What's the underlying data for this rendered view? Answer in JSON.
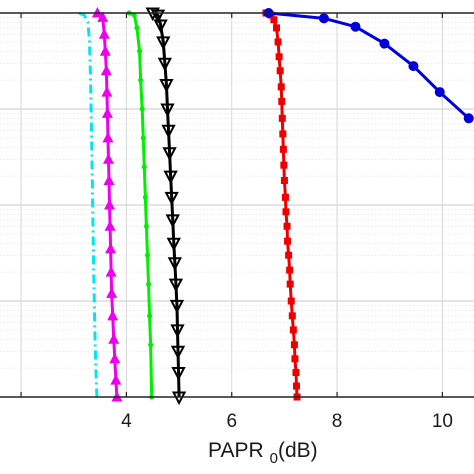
{
  "chart_data": {
    "type": "line",
    "title": "",
    "xlabel": "PAPR",
    "xlabel_subscript": "0",
    "xlabel_unit": "(dB)",
    "ylabel": "",
    "xlim": [
      1.6,
      10.6
    ],
    "ylim_log": [
      -4,
      0
    ],
    "y_scale": "log",
    "x_ticks": [
      "4",
      "6",
      "8",
      "10"
    ],
    "grid": true,
    "series": [
      {
        "color": "#00e5ee",
        "style": "dashdot",
        "marker": "none",
        "points": [
          [
            3.1,
            1.0
          ],
          [
            3.2,
            0.95
          ],
          [
            3.27,
            0.8
          ],
          [
            3.3,
            0.5
          ],
          [
            3.32,
            0.2
          ],
          [
            3.34,
            0.05
          ],
          [
            3.36,
            0.01
          ],
          [
            3.38,
            0.002
          ],
          [
            3.4,
            0.0005
          ],
          [
            3.42,
            0.0002
          ],
          [
            3.44,
            0.0001
          ]
        ]
      },
      {
        "color": "#ee00ee",
        "style": "solid",
        "marker": "triangle-up",
        "points": [
          [
            3.45,
            1.0
          ],
          [
            3.55,
            0.9
          ],
          [
            3.58,
            0.6
          ],
          [
            3.6,
            0.4
          ],
          [
            3.62,
            0.25
          ],
          [
            3.63,
            0.15
          ],
          [
            3.64,
            0.09
          ],
          [
            3.65,
            0.05
          ],
          [
            3.66,
            0.03
          ],
          [
            3.67,
            0.018
          ],
          [
            3.68,
            0.01
          ],
          [
            3.69,
            0.006
          ],
          [
            3.7,
            0.0035
          ],
          [
            3.71,
            0.002
          ],
          [
            3.72,
            0.0012
          ],
          [
            3.74,
            0.0007
          ],
          [
            3.76,
            0.0004
          ],
          [
            3.78,
            0.00025
          ],
          [
            3.8,
            0.00015
          ],
          [
            3.82,
            0.0001
          ]
        ]
      },
      {
        "color": "#00ee00",
        "style": "solid",
        "marker": "dot",
        "points": [
          [
            4.05,
            1.0
          ],
          [
            4.15,
            0.95
          ],
          [
            4.2,
            0.7
          ],
          [
            4.25,
            0.4
          ],
          [
            4.27,
            0.2
          ],
          [
            4.3,
            0.1
          ],
          [
            4.32,
            0.05
          ],
          [
            4.34,
            0.025
          ],
          [
            4.36,
            0.012
          ],
          [
            4.38,
            0.006
          ],
          [
            4.4,
            0.003
          ],
          [
            4.42,
            0.0015
          ],
          [
            4.44,
            0.0007
          ],
          [
            4.46,
            0.00035
          ],
          [
            4.48,
            0.0001
          ]
        ]
      },
      {
        "color": "#000000",
        "style": "solid",
        "marker": "triangle-down",
        "points": [
          [
            4.5,
            1.0
          ],
          [
            4.6,
            0.95
          ],
          [
            4.65,
            0.75
          ],
          [
            4.7,
            0.5
          ],
          [
            4.73,
            0.3
          ],
          [
            4.76,
            0.18
          ],
          [
            4.78,
            0.1
          ],
          [
            4.8,
            0.06
          ],
          [
            4.82,
            0.035
          ],
          [
            4.84,
            0.02
          ],
          [
            4.86,
            0.012
          ],
          [
            4.88,
            0.007
          ],
          [
            4.9,
            0.004
          ],
          [
            4.92,
            0.0025
          ],
          [
            4.94,
            0.0015
          ],
          [
            4.96,
            0.0009
          ],
          [
            4.97,
            0.0005
          ],
          [
            4.98,
            0.0003
          ],
          [
            4.99,
            0.00018
          ],
          [
            5.0,
            0.0001
          ]
        ]
      },
      {
        "color": "#ee0000",
        "style": "solid",
        "marker": "square",
        "points": [
          [
            6.65,
            1.0
          ],
          [
            6.75,
            0.95
          ],
          [
            6.8,
            0.85
          ],
          [
            6.85,
            0.7
          ],
          [
            6.88,
            0.5
          ],
          [
            6.9,
            0.35
          ],
          [
            6.92,
            0.25
          ],
          [
            6.94,
            0.17
          ],
          [
            6.95,
            0.12
          ],
          [
            6.96,
            0.08
          ],
          [
            6.97,
            0.055
          ],
          [
            6.98,
            0.038
          ],
          [
            6.99,
            0.026
          ],
          [
            7.0,
            0.018
          ],
          [
            7.02,
            0.012
          ],
          [
            7.03,
            0.0085
          ],
          [
            7.05,
            0.006
          ],
          [
            7.06,
            0.0042
          ],
          [
            7.08,
            0.003
          ],
          [
            7.1,
            0.0021
          ],
          [
            7.11,
            0.0015
          ],
          [
            7.13,
            0.001
          ],
          [
            7.15,
            0.0007
          ],
          [
            7.17,
            0.0005
          ],
          [
            7.19,
            0.00035
          ],
          [
            7.2,
            0.00025
          ],
          [
            7.22,
            0.00018
          ],
          [
            7.23,
            0.00013
          ],
          [
            7.24,
            0.0001
          ]
        ]
      },
      {
        "color": "#0000dd",
        "style": "solid",
        "marker": "dot-large",
        "points": [
          [
            6.7,
            1.0
          ],
          [
            7.75,
            0.88
          ],
          [
            8.35,
            0.72
          ],
          [
            8.9,
            0.48
          ],
          [
            9.45,
            0.28
          ],
          [
            9.95,
            0.15
          ],
          [
            10.5,
            0.08
          ]
        ]
      }
    ]
  }
}
